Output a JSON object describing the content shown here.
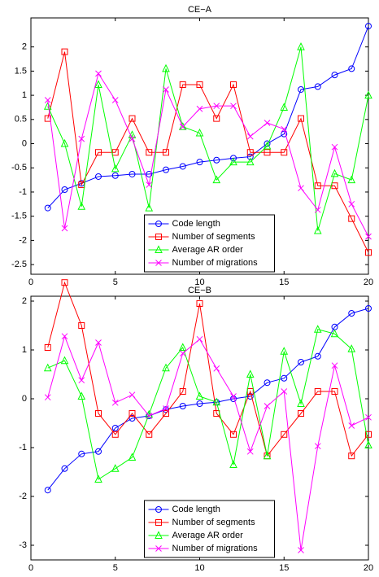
{
  "chart_data": [
    {
      "type": "line",
      "title": "CE−A",
      "x": [
        1,
        2,
        3,
        4,
        5,
        6,
        7,
        8,
        9,
        10,
        11,
        12,
        13,
        14,
        15,
        16,
        17,
        18,
        19,
        20
      ],
      "xlim": [
        0,
        20
      ],
      "xticks": [
        0,
        5,
        10,
        15,
        20
      ],
      "ylim": [
        -2.7,
        2.6
      ],
      "yticks": [
        -2.5,
        -2,
        -1.5,
        -1,
        -0.5,
        0,
        0.5,
        1,
        1.5,
        2
      ],
      "legend": "lower center",
      "series": [
        {
          "name": "Code length",
          "color": "#0000ff",
          "marker": "circle",
          "values": [
            -1.33,
            -0.95,
            -0.82,
            -0.68,
            -0.66,
            -0.63,
            -0.63,
            -0.54,
            -0.47,
            -0.38,
            -0.34,
            -0.3,
            -0.27,
            0.0,
            0.2,
            1.12,
            1.18,
            1.42,
            1.55,
            2.43
          ]
        },
        {
          "name": "Number of segments",
          "color": "#ff0000",
          "marker": "square",
          "values": [
            0.52,
            1.9,
            -0.85,
            -0.18,
            -0.18,
            0.52,
            -0.18,
            -0.18,
            1.22,
            1.22,
            0.52,
            1.22,
            -0.18,
            -0.18,
            -0.18,
            0.52,
            -0.87,
            -0.87,
            -1.55,
            -2.25
          ]
        },
        {
          "name": "Average AR order",
          "color": "#00ff00",
          "marker": "triangle",
          "values": [
            0.77,
            0.0,
            -1.3,
            1.22,
            -0.52,
            0.18,
            -1.33,
            1.55,
            0.35,
            0.22,
            -0.75,
            -0.38,
            -0.38,
            -0.05,
            0.75,
            2.0,
            -1.8,
            -0.62,
            -0.75,
            1.0
          ]
        },
        {
          "name": "Number of migrations",
          "color": "#ff00ff",
          "marker": "x",
          "values": [
            0.9,
            -1.75,
            0.1,
            1.45,
            0.9,
            0.1,
            -0.85,
            1.12,
            0.35,
            0.72,
            0.78,
            0.78,
            0.15,
            0.43,
            0.3,
            -0.92,
            -1.37,
            -0.07,
            -1.25,
            -1.92
          ]
        }
      ]
    },
    {
      "type": "line",
      "title": "CE−B",
      "x": [
        1,
        2,
        3,
        4,
        5,
        6,
        7,
        8,
        9,
        10,
        11,
        12,
        13,
        14,
        15,
        16,
        17,
        18,
        19,
        20
      ],
      "xlim": [
        0,
        20
      ],
      "xticks": [
        0,
        5,
        10,
        15,
        20
      ],
      "ylim": [
        -3.3,
        2.1
      ],
      "yticks": [
        -3,
        -2,
        -1,
        0,
        1,
        2
      ],
      "legend": "lower center",
      "series": [
        {
          "name": "Code length",
          "color": "#0000ff",
          "marker": "circle",
          "values": [
            -1.87,
            -1.43,
            -1.13,
            -1.08,
            -0.6,
            -0.4,
            -0.35,
            -0.22,
            -0.15,
            -0.1,
            -0.07,
            0.0,
            0.05,
            0.33,
            0.42,
            0.75,
            0.87,
            1.47,
            1.75,
            1.85
          ]
        },
        {
          "name": "Number of segments",
          "color": "#ff0000",
          "marker": "square",
          "values": [
            1.05,
            2.38,
            1.5,
            -0.3,
            -0.73,
            -0.3,
            -0.73,
            -0.3,
            0.15,
            1.95,
            -0.3,
            -0.73,
            0.15,
            -1.17,
            -0.73,
            -0.3,
            0.15,
            0.15,
            -1.17,
            -0.73
          ]
        },
        {
          "name": "Average AR order",
          "color": "#00ff00",
          "marker": "triangle",
          "values": [
            0.63,
            0.78,
            0.05,
            -1.65,
            -1.43,
            -1.2,
            -0.32,
            0.63,
            1.05,
            0.05,
            -0.07,
            -1.35,
            0.5,
            -1.17,
            0.97,
            -0.1,
            1.42,
            1.33,
            1.02,
            -0.95
          ]
        },
        {
          "name": "Number of migrations",
          "color": "#ff00ff",
          "marker": "x",
          "values": [
            0.03,
            1.28,
            0.38,
            1.15,
            -0.08,
            0.08,
            -0.35,
            -0.2,
            0.93,
            1.22,
            0.62,
            0.05,
            -1.08,
            -0.15,
            0.15,
            -3.1,
            -0.97,
            0.68,
            -0.55,
            -0.38
          ]
        }
      ]
    }
  ]
}
